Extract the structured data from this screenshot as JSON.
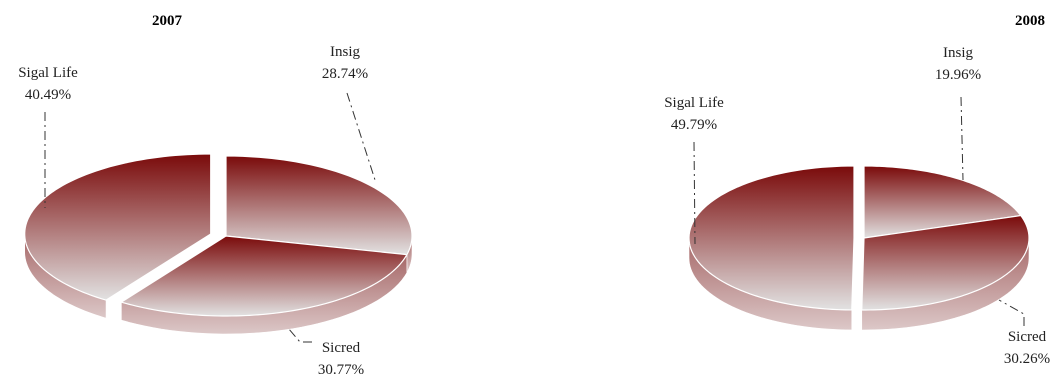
{
  "chart_data": [
    {
      "type": "pie",
      "title": "2007",
      "slices": [
        {
          "label": "Insig",
          "value": 28.74,
          "value_label": "28.74%"
        },
        {
          "label": "Sicred",
          "value": 30.77,
          "value_label": "30.77%"
        },
        {
          "label": "Sigal Life",
          "value": 40.49,
          "value_label": "40.49%"
        }
      ],
      "style": "3d-exploded",
      "start_angle_deg": 90,
      "exploded_slice": "Sigal Life"
    },
    {
      "type": "pie",
      "title": "2008",
      "slices": [
        {
          "label": "Insig",
          "value": 19.96,
          "value_label": "19.96%"
        },
        {
          "label": "Sicred",
          "value": 30.26,
          "value_label": "30.26%"
        },
        {
          "label": "Sigal Life",
          "value": 49.79,
          "value_label": "49.79%"
        }
      ],
      "style": "3d-exploded",
      "start_angle_deg": 90,
      "exploded_slice": "Sigal Life"
    }
  ],
  "colors": {
    "top_dark": "#7a0a0a",
    "top_light": "#e2e2e2",
    "side_dark": "#a66767",
    "side_light": "#dcc8c8",
    "edge": "#ffffff"
  }
}
